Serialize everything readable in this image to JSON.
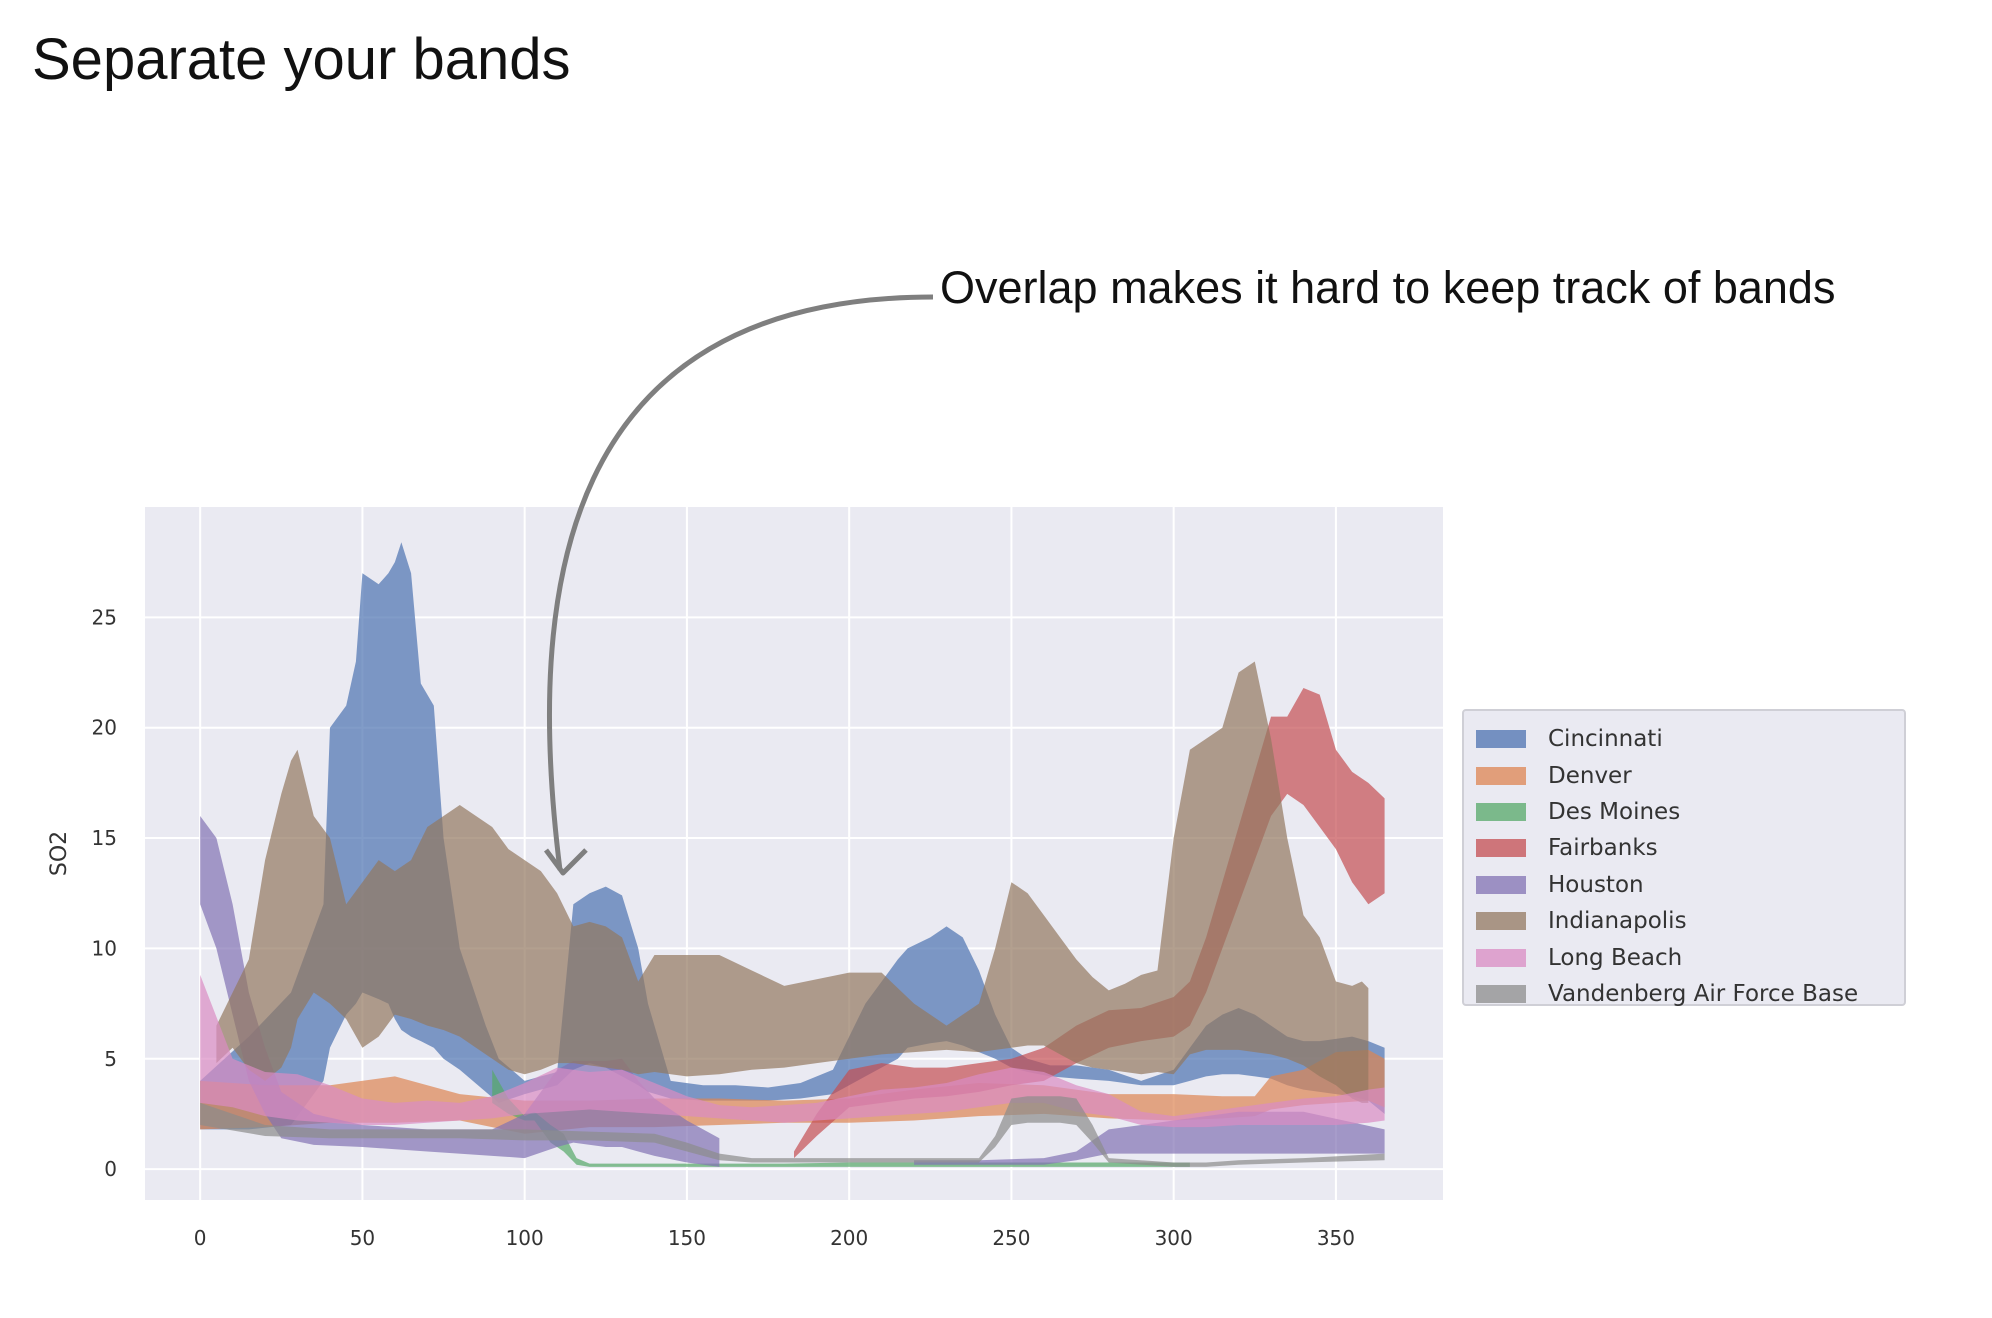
{
  "slide": {
    "title": "Separate your bands",
    "annotation": "Overlap makes it hard to keep track of bands"
  },
  "chart_data": {
    "type": "area",
    "xlabel": "",
    "ylabel": "SO2",
    "xlim": [
      -17,
      383
    ],
    "ylim": [
      -1.4,
      30.0
    ],
    "xticks": [
      0,
      50,
      100,
      150,
      200,
      250,
      300,
      350
    ],
    "yticks": [
      0,
      5,
      10,
      15,
      20,
      25
    ],
    "grid": true,
    "legend_position": "right",
    "series": [
      {
        "name": "Cincinnati",
        "color": "#4c72b0",
        "x": [
          0,
          15,
          28,
          38,
          40,
          45,
          48,
          50,
          55,
          58,
          60,
          62,
          65,
          68,
          72,
          75,
          80,
          88,
          92,
          96,
          100,
          105,
          110,
          115,
          120,
          125,
          130,
          135,
          138,
          145,
          155,
          165,
          175,
          185,
          195,
          205,
          215,
          218,
          225,
          230,
          235,
          240,
          245,
          250,
          255,
          262,
          270,
          280,
          290,
          300,
          305,
          310,
          315,
          320,
          325,
          330,
          335,
          340,
          345,
          350,
          355,
          360,
          365
        ],
        "upper": [
          4,
          6,
          8,
          12,
          20,
          21,
          23,
          27,
          26.5,
          27,
          27.5,
          28.4,
          27,
          22,
          21,
          15,
          10,
          6.5,
          5,
          4.5,
          4,
          4.2,
          4.4,
          12,
          12.5,
          12.8,
          12.4,
          10,
          7.5,
          4,
          3.8,
          3.8,
          3.7,
          3.9,
          4.5,
          7.5,
          9.5,
          10,
          10.5,
          11,
          10.5,
          9,
          7,
          5.5,
          5,
          4.7,
          4.7,
          4.5,
          4,
          4.5,
          5.5,
          6.5,
          7,
          7.3,
          7,
          6.5,
          6,
          5.8,
          5.8,
          5.9,
          6,
          5.8,
          5.5
        ],
        "lower": [
          1.8,
          1.8,
          2,
          4,
          5.5,
          7,
          7.5,
          8,
          7.7,
          7.5,
          6.8,
          6.3,
          6,
          5.8,
          5.5,
          5,
          4.5,
          3.5,
          3,
          3.2,
          3.4,
          3.6,
          3.8,
          4.5,
          4.8,
          4.6,
          4.2,
          3.8,
          3.5,
          3.2,
          3.1,
          3.1,
          3.1,
          3.2,
          3.4,
          4.2,
          5,
          5.5,
          5.7,
          5.8,
          5.6,
          5.3,
          5,
          4.6,
          4.4,
          4.2,
          4.1,
          4,
          3.8,
          3.8,
          4,
          4.2,
          4.3,
          4.3,
          4.2,
          4.1,
          3.8,
          3.6,
          3.5,
          3.4,
          3.3,
          3.1,
          2.5
        ]
      },
      {
        "name": "Denver",
        "color": "#dd8452",
        "x": [
          0,
          20,
          40,
          60,
          80,
          100,
          120,
          140,
          160,
          180,
          200,
          220,
          240,
          260,
          280,
          300,
          315,
          325,
          330,
          340,
          350,
          360,
          365
        ],
        "upper": [
          4,
          3.8,
          3.8,
          4.2,
          3.4,
          3.1,
          3.1,
          3.2,
          3.2,
          3.1,
          3.2,
          3.6,
          3.9,
          3.8,
          3.4,
          3.4,
          3.3,
          3.3,
          4.2,
          4.5,
          5.3,
          5.4,
          5.0
        ],
        "lower": [
          1.8,
          1.9,
          2.1,
          2.1,
          2.2,
          1.6,
          1.9,
          1.9,
          2.0,
          2.1,
          2.1,
          2.2,
          2.4,
          2.5,
          2.3,
          2.2,
          2.3,
          2.4,
          2.7,
          2.9,
          3.0,
          3.1,
          2.8
        ]
      },
      {
        "name": "Des Moines",
        "color": "#55a868",
        "x": [
          90,
          95,
          100,
          103,
          108,
          112,
          116,
          120,
          140,
          160,
          180,
          200,
          220,
          240,
          260,
          280,
          300,
          305
        ],
        "upper": [
          4.5,
          3.2,
          2.4,
          2.6,
          2.0,
          1.6,
          0.5,
          0.25,
          0.25,
          0.25,
          0.25,
          0.3,
          0.3,
          0.3,
          0.3,
          0.3,
          0.3,
          0.3
        ],
        "lower": [
          3.0,
          2.5,
          2.2,
          2.2,
          1.2,
          0.8,
          0.2,
          0.1,
          0.1,
          0.1,
          0.1,
          0.1,
          0.1,
          0.1,
          0.1,
          0.1,
          0.1,
          0.1
        ]
      },
      {
        "name": "Fairbanks",
        "color": "#c44e52",
        "x": [
          183,
          190,
          200,
          210,
          220,
          230,
          240,
          250,
          260,
          270,
          280,
          290,
          300,
          305,
          310,
          315,
          320,
          325,
          330,
          335,
          340,
          345,
          350,
          355,
          360,
          365
        ],
        "upper": [
          0.8,
          2.5,
          4.5,
          4.8,
          4.6,
          4.6,
          4.8,
          5.0,
          5.5,
          6.5,
          7.2,
          7.3,
          7.8,
          8.5,
          10.5,
          13,
          15.5,
          18,
          20.5,
          20.5,
          21.8,
          21.5,
          19,
          18,
          17.5,
          16.8
        ],
        "lower": [
          0.5,
          1.5,
          2.8,
          3.0,
          3.2,
          3.3,
          3.5,
          3.8,
          4.0,
          4.8,
          5.5,
          5.8,
          6.0,
          6.5,
          8,
          10,
          12,
          14,
          16,
          17,
          16.5,
          15.5,
          14.5,
          13,
          12,
          12.5
        ]
      },
      {
        "name": "Houston",
        "color": "#8172b3",
        "x": [
          0,
          5,
          10,
          15,
          20,
          25,
          35,
          50,
          70,
          90,
          100,
          110,
          115,
          125,
          130,
          135,
          140,
          150,
          160
        ],
        "upper": [
          16,
          15,
          12,
          8,
          5.5,
          3.5,
          2.5,
          2.0,
          1.8,
          1.8,
          2.5,
          4.5,
          4.9,
          4.9,
          5.0,
          4.0,
          3.2,
          2.2,
          1.4
        ],
        "lower": [
          12,
          10,
          7,
          4,
          2.5,
          1.4,
          1.1,
          1.0,
          0.8,
          0.6,
          0.5,
          1.0,
          1.2,
          1.0,
          1.0,
          0.8,
          0.6,
          0.3,
          0.1
        ],
        "x2": [
          220,
          240,
          260,
          270,
          280,
          300,
          320,
          340,
          365
        ],
        "upper2": [
          0.4,
          0.4,
          0.5,
          0.8,
          1.8,
          2.2,
          2.6,
          2.6,
          1.8
        ],
        "lower2": [
          0.2,
          0.2,
          0.2,
          0.4,
          0.7,
          0.7,
          0.7,
          0.7,
          0.7
        ]
      },
      {
        "name": "Indianapolis",
        "color": "#937860",
        "x": [
          5,
          10,
          15,
          20,
          25,
          28,
          30,
          35,
          40,
          45,
          50,
          55,
          60,
          65,
          70,
          75,
          80,
          85,
          90,
          95,
          100,
          105,
          110,
          115,
          120,
          125,
          130,
          135,
          140,
          145,
          150,
          160,
          170,
          180,
          190,
          200,
          210,
          220,
          230,
          240,
          245,
          250,
          255,
          260,
          265,
          270,
          275,
          280,
          285,
          290,
          295,
          300,
          305,
          310,
          315,
          320,
          325,
          330,
          335,
          340,
          345,
          350,
          355,
          358,
          360
        ],
        "upper": [
          6.5,
          8,
          9.5,
          14,
          17,
          18.5,
          19,
          16,
          15,
          12,
          13,
          14,
          13.5,
          14,
          15.5,
          16,
          16.5,
          16,
          15.5,
          14.5,
          14,
          13.5,
          12.5,
          11,
          11.2,
          11,
          10.5,
          8.5,
          9.7,
          9.7,
          9.7,
          9.7,
          9,
          8.3,
          8.6,
          8.9,
          8.9,
          7.5,
          6.5,
          7.5,
          10,
          13,
          12.5,
          11.5,
          10.5,
          9.5,
          8.7,
          8.1,
          8.4,
          8.8,
          9,
          15,
          19,
          19.5,
          20,
          22.5,
          23,
          19.5,
          15,
          11.5,
          10.5,
          8.5,
          8.3,
          8.5,
          8.2
        ],
        "lower": [
          4.8,
          5.5,
          4.5,
          4.0,
          4.6,
          5.5,
          6.8,
          8,
          7.5,
          6.8,
          5.5,
          6.0,
          7.0,
          6.8,
          6.5,
          6.3,
          6.0,
          5.5,
          5.0,
          4.5,
          4.3,
          4.5,
          4.8,
          4.8,
          4.7,
          4.6,
          4.5,
          4.3,
          4.4,
          4.3,
          4.2,
          4.3,
          4.5,
          4.6,
          4.8,
          5.0,
          5.2,
          5.3,
          5.4,
          5.3,
          5.4,
          5.5,
          5.6,
          5.6,
          5.2,
          4.8,
          4.6,
          4.5,
          4.4,
          4.3,
          4.4,
          4.3,
          5.2,
          5.4,
          5.4,
          5.4,
          5.3,
          5.2,
          5.0,
          4.7,
          4.2,
          3.8,
          3.2,
          3.0,
          3.0
        ]
      },
      {
        "name": "Long Beach",
        "color": "#da8bc3",
        "x": [
          0,
          10,
          20,
          30,
          40,
          50,
          60,
          70,
          80,
          90,
          100,
          110,
          120,
          130,
          140,
          150,
          160,
          170,
          180,
          190,
          200,
          210,
          220,
          230,
          240,
          250,
          260,
          270,
          280,
          290,
          300,
          310,
          320,
          330,
          340,
          350,
          360,
          365
        ],
        "upper": [
          8.8,
          5.0,
          4.4,
          4.3,
          3.8,
          3.2,
          3.0,
          3.1,
          3.0,
          3.3,
          3.9,
          4.6,
          4.4,
          4.5,
          3.9,
          3.3,
          2.9,
          2.8,
          2.9,
          3.0,
          3.3,
          3.6,
          3.7,
          3.9,
          4.3,
          4.6,
          4.4,
          3.8,
          3.4,
          2.6,
          2.4,
          2.6,
          2.8,
          3.0,
          3.2,
          3.3,
          3.6,
          3.7
        ],
        "lower": [
          3.0,
          2.8,
          2.4,
          2.2,
          2.1,
          2.0,
          2.0,
          2.1,
          2.2,
          2.3,
          2.5,
          2.6,
          2.7,
          2.6,
          2.5,
          2.4,
          2.3,
          2.2,
          2.1,
          2.2,
          2.3,
          2.4,
          2.5,
          2.6,
          2.8,
          3.0,
          3.0,
          2.6,
          2.4,
          2.0,
          1.9,
          1.9,
          2.0,
          2.0,
          2.0,
          2.0,
          2.1,
          2.2
        ]
      },
      {
        "name": "Vandenberg Air Force Base",
        "color": "#8c8c8c",
        "x": [
          0,
          20,
          40,
          60,
          80,
          100,
          120,
          140,
          150,
          160,
          170,
          180,
          200,
          220,
          240,
          245,
          250,
          255,
          260,
          265,
          270,
          275,
          280,
          300,
          310,
          320,
          340,
          365
        ],
        "upper": [
          3.0,
          2.0,
          1.8,
          1.8,
          1.8,
          1.8,
          1.7,
          1.6,
          1.2,
          0.7,
          0.5,
          0.5,
          0.5,
          0.5,
          0.5,
          1.5,
          3.2,
          3.3,
          3.3,
          3.3,
          3.2,
          2.0,
          0.5,
          0.3,
          0.3,
          0.4,
          0.5,
          0.7
        ],
        "lower": [
          2.0,
          1.5,
          1.4,
          1.4,
          1.4,
          1.3,
          1.3,
          1.2,
          0.8,
          0.4,
          0.3,
          0.3,
          0.3,
          0.3,
          0.3,
          1.0,
          2.0,
          2.1,
          2.1,
          2.1,
          2.0,
          1.2,
          0.3,
          0.1,
          0.1,
          0.2,
          0.3,
          0.4
        ]
      }
    ]
  }
}
